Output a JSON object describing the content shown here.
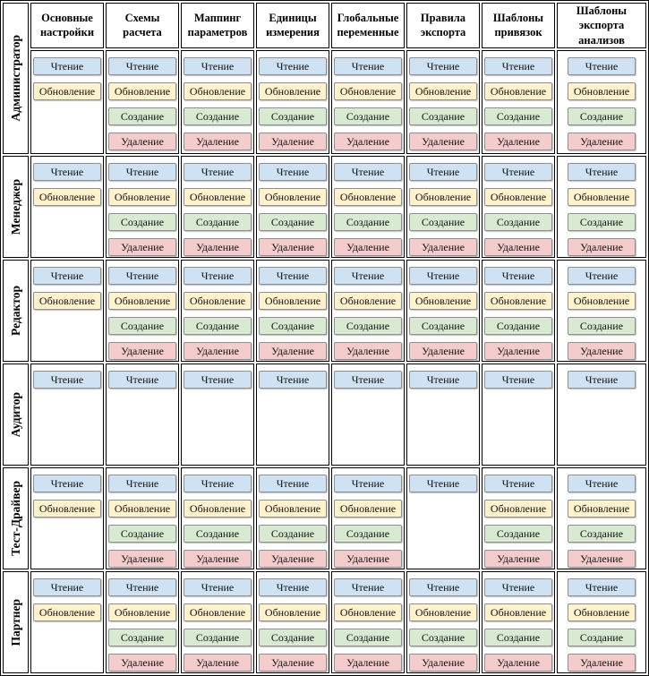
{
  "table_name": "role-permissions-matrix",
  "permission_labels": {
    "read": "Чтение",
    "update": "Обновление",
    "create": "Создание",
    "delete": "Удаление"
  },
  "colors": {
    "read": "#cfe2f3",
    "update": "#fff2cc",
    "create": "#d9ead3",
    "delete": "#f4cccc",
    "chip_border": "#8f8f8f",
    "grid": "#000000"
  },
  "columns": [
    "Основные настройки",
    "Схемы расчета",
    "Маппинг параметров",
    "Единицы измерения",
    "Глобальные переменные",
    "Правила экспорта",
    "Шаблоны привязок",
    "Шаблоны экспорта анализов"
  ],
  "rows": [
    {
      "role": "Администратор",
      "permissions": [
        [
          "read",
          "update"
        ],
        [
          "read",
          "update",
          "create",
          "delete"
        ],
        [
          "read",
          "update",
          "create",
          "delete"
        ],
        [
          "read",
          "update",
          "create",
          "delete"
        ],
        [
          "read",
          "update",
          "create",
          "delete"
        ],
        [
          "read",
          "update",
          "create",
          "delete"
        ],
        [
          "read",
          "update",
          "create",
          "delete"
        ],
        [
          "read",
          "update",
          "create",
          "delete"
        ]
      ]
    },
    {
      "role": "Менеджер",
      "permissions": [
        [
          "read",
          "update"
        ],
        [
          "read",
          "update",
          "create",
          "delete"
        ],
        [
          "read",
          "update",
          "create",
          "delete"
        ],
        [
          "read",
          "update",
          "create",
          "delete"
        ],
        [
          "read",
          "update",
          "create",
          "delete"
        ],
        [
          "read",
          "update",
          "create",
          "delete"
        ],
        [
          "read",
          "update",
          "create",
          "delete"
        ],
        [
          "read",
          "update",
          "create",
          "delete"
        ]
      ]
    },
    {
      "role": "Редактор",
      "permissions": [
        [
          "read",
          "update"
        ],
        [
          "read",
          "update",
          "create",
          "delete"
        ],
        [
          "read",
          "update",
          "create",
          "delete"
        ],
        [
          "read",
          "update",
          "create",
          "delete"
        ],
        [
          "read",
          "update",
          "create",
          "delete"
        ],
        [
          "read",
          "update",
          "create",
          "delete"
        ],
        [
          "read",
          "update",
          "create",
          "delete"
        ],
        [
          "read",
          "update",
          "create",
          "delete"
        ]
      ]
    },
    {
      "role": "Аудитор",
      "permissions": [
        [
          "read"
        ],
        [
          "read"
        ],
        [
          "read"
        ],
        [
          "read"
        ],
        [
          "read"
        ],
        [
          "read"
        ],
        [
          "read"
        ],
        [
          "read"
        ]
      ]
    },
    {
      "role": "Тест-Драйвер",
      "permissions": [
        [
          "read",
          "update"
        ],
        [
          "read",
          "update",
          "create",
          "delete"
        ],
        [
          "read",
          "update",
          "create",
          "delete"
        ],
        [
          "read",
          "update",
          "create",
          "delete"
        ],
        [
          "read",
          "update",
          "create",
          "delete"
        ],
        [
          "read"
        ],
        [
          "read",
          "update",
          "create",
          "delete"
        ],
        [
          "read",
          "update",
          "create",
          "delete"
        ]
      ]
    },
    {
      "role": "Партнер",
      "permissions": [
        [
          "read",
          "update"
        ],
        [
          "read",
          "update",
          "create",
          "delete"
        ],
        [
          "read",
          "update",
          "create",
          "delete"
        ],
        [
          "read",
          "update",
          "create",
          "delete"
        ],
        [
          "read",
          "update",
          "create",
          "delete"
        ],
        [
          "read",
          "update",
          "create",
          "delete"
        ],
        [
          "read",
          "update",
          "create",
          "delete"
        ],
        [
          "read",
          "update",
          "create",
          "delete"
        ]
      ]
    }
  ]
}
